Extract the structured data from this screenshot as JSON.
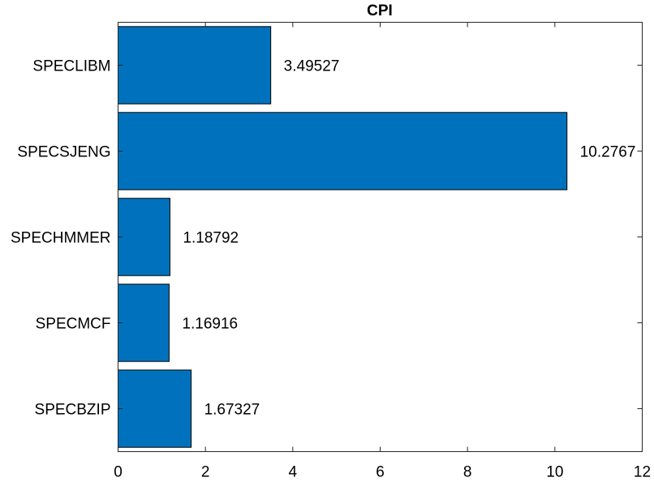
{
  "chart_data": {
    "type": "bar",
    "orientation": "horizontal",
    "title": "CPI",
    "xlabel": "",
    "ylabel": "",
    "categories": [
      "SPECLIBM",
      "SPECSJENG",
      "SPECHMMER",
      "SPECMCF",
      "SPECBZIP"
    ],
    "values": [
      3.49527,
      10.2767,
      1.18792,
      1.16916,
      1.67327
    ],
    "value_labels": [
      "3.49527",
      "10.2767",
      "1.18792",
      "1.16916",
      "1.67327"
    ],
    "xlim": [
      0,
      12
    ],
    "xticks": [
      0,
      2,
      4,
      6,
      8,
      10,
      12
    ],
    "xtick_labels": [
      "0",
      "2",
      "4",
      "6",
      "8",
      "10",
      "12"
    ],
    "grid": false,
    "bar_color": "#0072BD"
  }
}
